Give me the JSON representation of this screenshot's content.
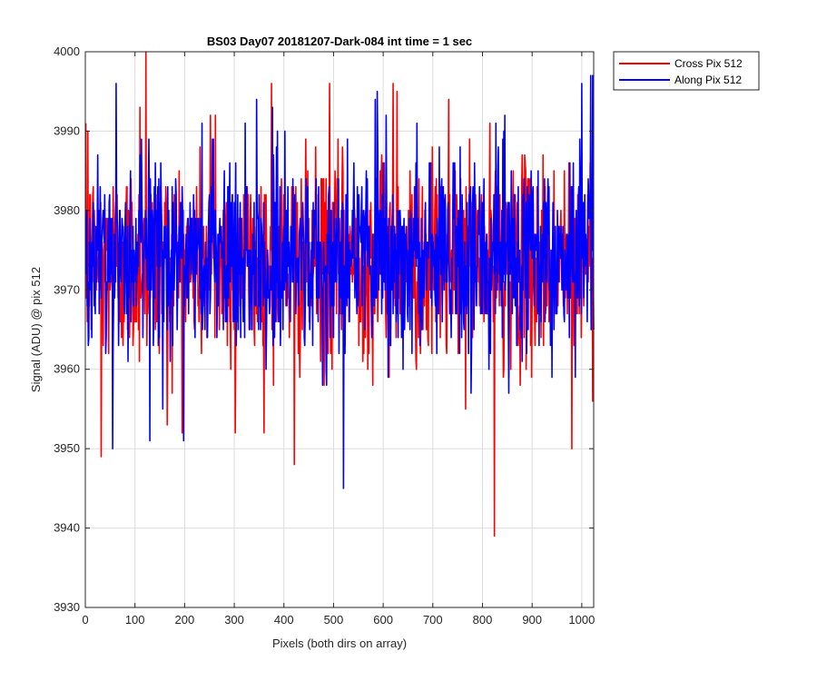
{
  "chart_data": {
    "type": "line",
    "title": "BS03 Day07 20181207-Dark-084 int time = 1 sec",
    "xlabel": "Pixels (both dirs on array)",
    "ylabel": "Signal (ADU) @ pix 512",
    "xlim": [
      0,
      1024
    ],
    "ylim": [
      3930,
      4000
    ],
    "xticks": [
      0,
      100,
      200,
      300,
      400,
      500,
      600,
      700,
      800,
      900,
      1000
    ],
    "yticks": [
      3930,
      3940,
      3950,
      3960,
      3970,
      3980,
      3990,
      4000
    ],
    "grid": true,
    "legend_position": "outside top-right",
    "n_points": 1024,
    "series": [
      {
        "name": "Cross Pix 512",
        "color": "#ff0000",
        "mean": 3973.5,
        "stdev": 6.3,
        "extremes": [
          {
            "x": 5,
            "y": 3990
          },
          {
            "x": 32,
            "y": 3949
          },
          {
            "x": 110,
            "y": 3993
          },
          {
            "x": 122,
            "y": 4000
          },
          {
            "x": 165,
            "y": 3953
          },
          {
            "x": 252,
            "y": 3992
          },
          {
            "x": 262,
            "y": 3992
          },
          {
            "x": 302,
            "y": 3952
          },
          {
            "x": 375,
            "y": 3996
          },
          {
            "x": 421,
            "y": 3948
          },
          {
            "x": 492,
            "y": 3996
          },
          {
            "x": 620,
            "y": 3996
          },
          {
            "x": 628,
            "y": 3995
          },
          {
            "x": 732,
            "y": 3994
          },
          {
            "x": 824,
            "y": 3939
          },
          {
            "x": 980,
            "y": 3950
          }
        ]
      },
      {
        "name": "Along Pix 512",
        "color": "#0000ff",
        "mean": 3974.2,
        "stdev": 6.1,
        "extremes": [
          {
            "x": 55,
            "y": 3950
          },
          {
            "x": 62,
            "y": 3996
          },
          {
            "x": 130,
            "y": 3951
          },
          {
            "x": 198,
            "y": 3951
          },
          {
            "x": 345,
            "y": 3994
          },
          {
            "x": 377,
            "y": 3993
          },
          {
            "x": 520,
            "y": 3945
          },
          {
            "x": 584,
            "y": 3994
          },
          {
            "x": 588,
            "y": 3995
          },
          {
            "x": 1000,
            "y": 3996
          },
          {
            "x": 1018,
            "y": 3997
          },
          {
            "x": 1022,
            "y": 3997
          }
        ]
      }
    ]
  }
}
